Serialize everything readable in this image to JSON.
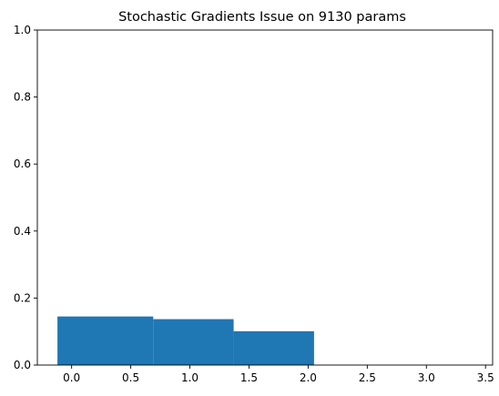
{
  "chart_data": {
    "type": "bar",
    "title": "Stochastic Gradients Issue on 9130 params",
    "xlabel": "",
    "ylabel": "",
    "xlim": [
      -0.29,
      3.56
    ],
    "ylim": [
      0.0,
      1.0
    ],
    "xticks": [
      0.0,
      0.5,
      1.0,
      1.5,
      2.0,
      2.5,
      3.0,
      3.5
    ],
    "xtick_labels": [
      "0.0",
      "0.5",
      "1.0",
      "1.5",
      "2.0",
      "2.5",
      "3.0",
      "3.5"
    ],
    "yticks": [
      0.0,
      0.2,
      0.4,
      0.6,
      0.8,
      1.0
    ],
    "ytick_labels": [
      "0.0",
      "0.2",
      "0.4",
      "0.6",
      "0.8",
      "1.0"
    ],
    "bars": [
      {
        "x0": -0.12,
        "x1": 0.69,
        "value": 0.145
      },
      {
        "x0": 0.69,
        "x1": 1.37,
        "value": 0.137
      },
      {
        "x0": 1.37,
        "x1": 2.05,
        "value": 0.101
      }
    ],
    "bar_color": "#1f77b4",
    "grid": false,
    "legend": "none"
  }
}
